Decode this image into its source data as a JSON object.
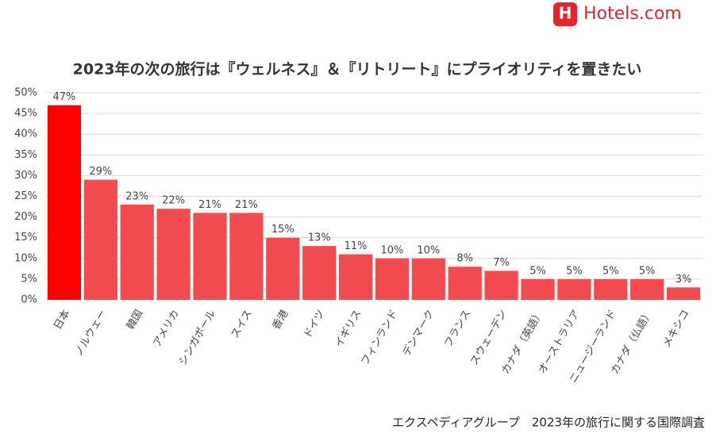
{
  "logo": "Hotels.com",
  "chart_data": {
    "type": "bar",
    "title": "2023年の次の旅行は『ウェルネス』＆『リトリート』にプライオリティを置きたい",
    "source": "エクスペディアグループ　2023年の旅行に関する国際調査",
    "categories": [
      "日本",
      "ノルウェー",
      "韓国",
      "アメリカ",
      "シンガポール",
      "スイス",
      "香港",
      "ドイツ",
      "イギリス",
      "フィンランド",
      "デンマーク",
      "フランス",
      "スウェーデン",
      "カナダ（英語）",
      "オーストラリア",
      "ニュージーランド",
      "カナダ（仏語）",
      "メキシコ"
    ],
    "values": [
      47,
      29,
      23,
      22,
      21,
      21,
      15,
      13,
      11,
      10,
      10,
      8,
      7,
      5,
      5,
      5,
      5,
      3
    ],
    "value_labels": [
      "47%",
      "29%",
      "23%",
      "22%",
      "21%",
      "21%",
      "15%",
      "13%",
      "11%",
      "10%",
      "10%",
      "8%",
      "7%",
      "5%",
      "5%",
      "5%",
      "5%",
      "3%"
    ],
    "colors": [
      "#ff0000",
      "#f24b4f",
      "#f24b4f",
      "#f24b4f",
      "#f24b4f",
      "#f24b4f",
      "#f24b4f",
      "#f24b4f",
      "#f24b4f",
      "#f24b4f",
      "#f24b4f",
      "#f24b4f",
      "#f24b4f",
      "#f24b4f",
      "#f24b4f",
      "#f24b4f",
      "#f24b4f",
      "#f24b4f"
    ],
    "ylim": [
      0,
      50
    ],
    "yticks": [
      {
        "value": 0,
        "label": "0%"
      },
      {
        "value": 5,
        "label": "5%"
      },
      {
        "value": 10,
        "label": "10%"
      },
      {
        "value": 15,
        "label": "15%"
      },
      {
        "value": 20,
        "label": "20%"
      },
      {
        "value": 25,
        "label": "25%"
      },
      {
        "value": 30,
        "label": "30%"
      },
      {
        "value": 35,
        "label": "35%"
      },
      {
        "value": 40,
        "label": "40%"
      },
      {
        "value": 45,
        "label": "45%"
      },
      {
        "value": 50,
        "label": "50%"
      }
    ],
    "grid": true
  }
}
